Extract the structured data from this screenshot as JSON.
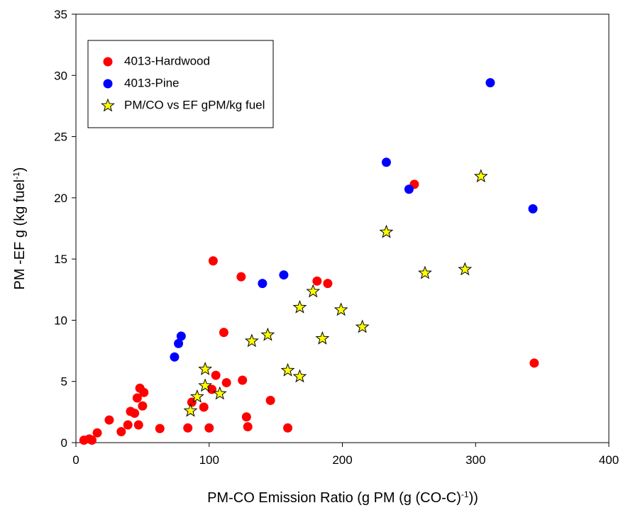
{
  "chart_data": {
    "type": "scatter",
    "xlabel": [
      "PM-CO Emission Ratio (g PM (g (CO-C)",
      "-1",
      "))"
    ],
    "ylabel": [
      "PM -EF g (kg fuel",
      "-1",
      ")"
    ],
    "xlim": [
      0,
      400
    ],
    "ylim": [
      0,
      35
    ],
    "xticks": [
      0,
      100,
      200,
      300,
      400
    ],
    "yticks": [
      0,
      5,
      10,
      15,
      20,
      25,
      30,
      35
    ],
    "legend": "upper left",
    "series": [
      {
        "name": "4013-Hardwood",
        "color": "#ff0000",
        "marker": "circle",
        "x": [
          6,
          10,
          12,
          16,
          25,
          34,
          39,
          41,
          44,
          46,
          48,
          51,
          50,
          47,
          63,
          84,
          87,
          96,
          100,
          102,
          105,
          103,
          111,
          113,
          124,
          125,
          128,
          129,
          146,
          159,
          181,
          189,
          254,
          344
        ],
        "values": [
          0.2,
          0.3,
          0.2,
          0.8,
          1.85,
          0.9,
          1.45,
          2.55,
          2.4,
          3.65,
          4.45,
          4.1,
          3.0,
          1.45,
          1.15,
          1.2,
          3.3,
          2.9,
          1.2,
          4.35,
          5.5,
          14.85,
          9.0,
          4.9,
          13.55,
          5.1,
          2.1,
          1.3,
          3.45,
          1.2,
          13.2,
          13.0,
          21.1,
          6.5
        ]
      },
      {
        "name": "4013-Pine",
        "color": "#0000ff",
        "marker": "circle",
        "x": [
          74,
          77,
          79,
          140,
          156,
          233,
          250,
          311,
          343
        ],
        "values": [
          7.0,
          8.1,
          8.7,
          13.0,
          13.7,
          22.9,
          20.7,
          29.4,
          19.1
        ]
      },
      {
        "name": "PM/CO vs EF gPM/kg fuel",
        "color": "#ffff00",
        "marker": "star",
        "x": [
          86,
          91,
          97,
          97,
          108,
          132,
          144,
          159,
          168,
          168,
          178,
          185,
          199,
          215,
          233,
          262,
          292,
          304
        ],
        "values": [
          2.6,
          3.75,
          6.0,
          4.65,
          4.0,
          8.3,
          8.8,
          5.9,
          5.4,
          11.05,
          12.35,
          8.5,
          10.85,
          9.45,
          17.2,
          13.85,
          14.15,
          21.75
        ]
      }
    ]
  }
}
